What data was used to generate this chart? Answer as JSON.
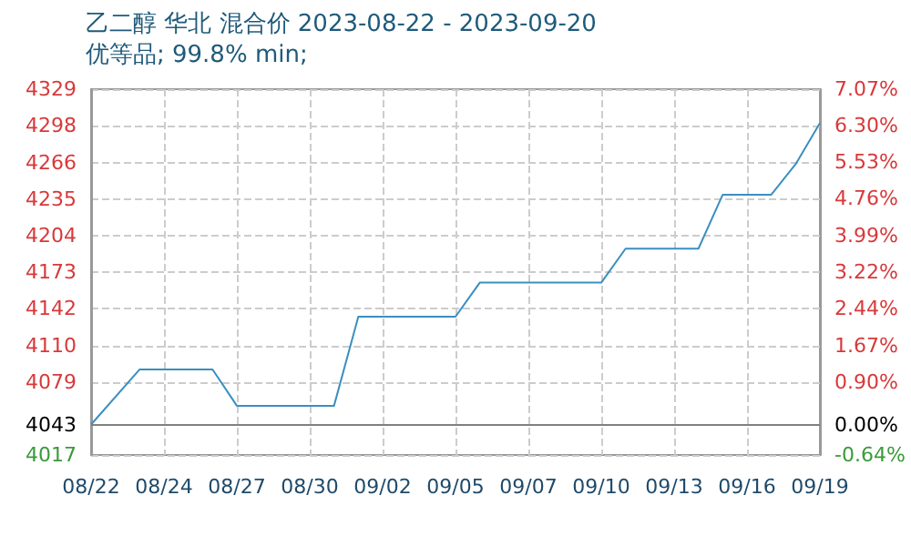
{
  "chart_data": {
    "type": "line",
    "title": "乙二醇 华北 混合价 2023-08-22 - 2023-09-20",
    "subtitle": "优等品; 99.8% min;",
    "categories": [
      "08/22",
      null,
      null,
      "08/24",
      null,
      null,
      "08/27",
      null,
      null,
      "08/30",
      null,
      null,
      "09/02",
      null,
      null,
      "09/05",
      null,
      null,
      "09/07",
      null,
      null,
      "09/10",
      null,
      null,
      "09/13",
      null,
      null,
      "09/16",
      null,
      null,
      "09/19"
    ],
    "series": [
      {
        "color": "#3a8fc0",
        "values": [
          4043,
          null,
          4090,
          null,
          null,
          4090,
          4059,
          null,
          null,
          null,
          4059,
          4135,
          null,
          null,
          null,
          4135,
          4164,
          null,
          null,
          null,
          null,
          4164,
          4193,
          null,
          null,
          4193,
          4239,
          null,
          4239,
          4265,
          4300
        ]
      }
    ],
    "ylim": [
      4017,
      4329
    ],
    "yticks": [
      4017,
      4043,
      4079,
      4110,
      4142,
      4173,
      4204,
      4235,
      4266,
      4298,
      4329
    ],
    "y2lim": [
      -0.64,
      7.07
    ],
    "y2ticks": [
      {
        "value": -0.64,
        "label": "-0.64%"
      },
      {
        "value": 0,
        "label": "0.00%"
      },
      {
        "value": 0.9,
        "label": "0.90%"
      },
      {
        "value": 1.67,
        "label": "1.67%"
      },
      {
        "value": 2.44,
        "label": "2.44%"
      },
      {
        "value": 3.22,
        "label": "3.22%"
      },
      {
        "value": 3.99,
        "label": "3.99%"
      },
      {
        "value": 4.76,
        "label": "4.76%"
      },
      {
        "value": 5.53,
        "label": "5.53%"
      },
      {
        "value": 6.3,
        "label": "6.30%"
      },
      {
        "value": 7.07,
        "label": "7.07%"
      }
    ],
    "ref_lines": [
      {
        "axis": "y",
        "value": 4043,
        "color": "#808080"
      }
    ],
    "grid": true,
    "marker": "none",
    "line_style": "solid"
  }
}
